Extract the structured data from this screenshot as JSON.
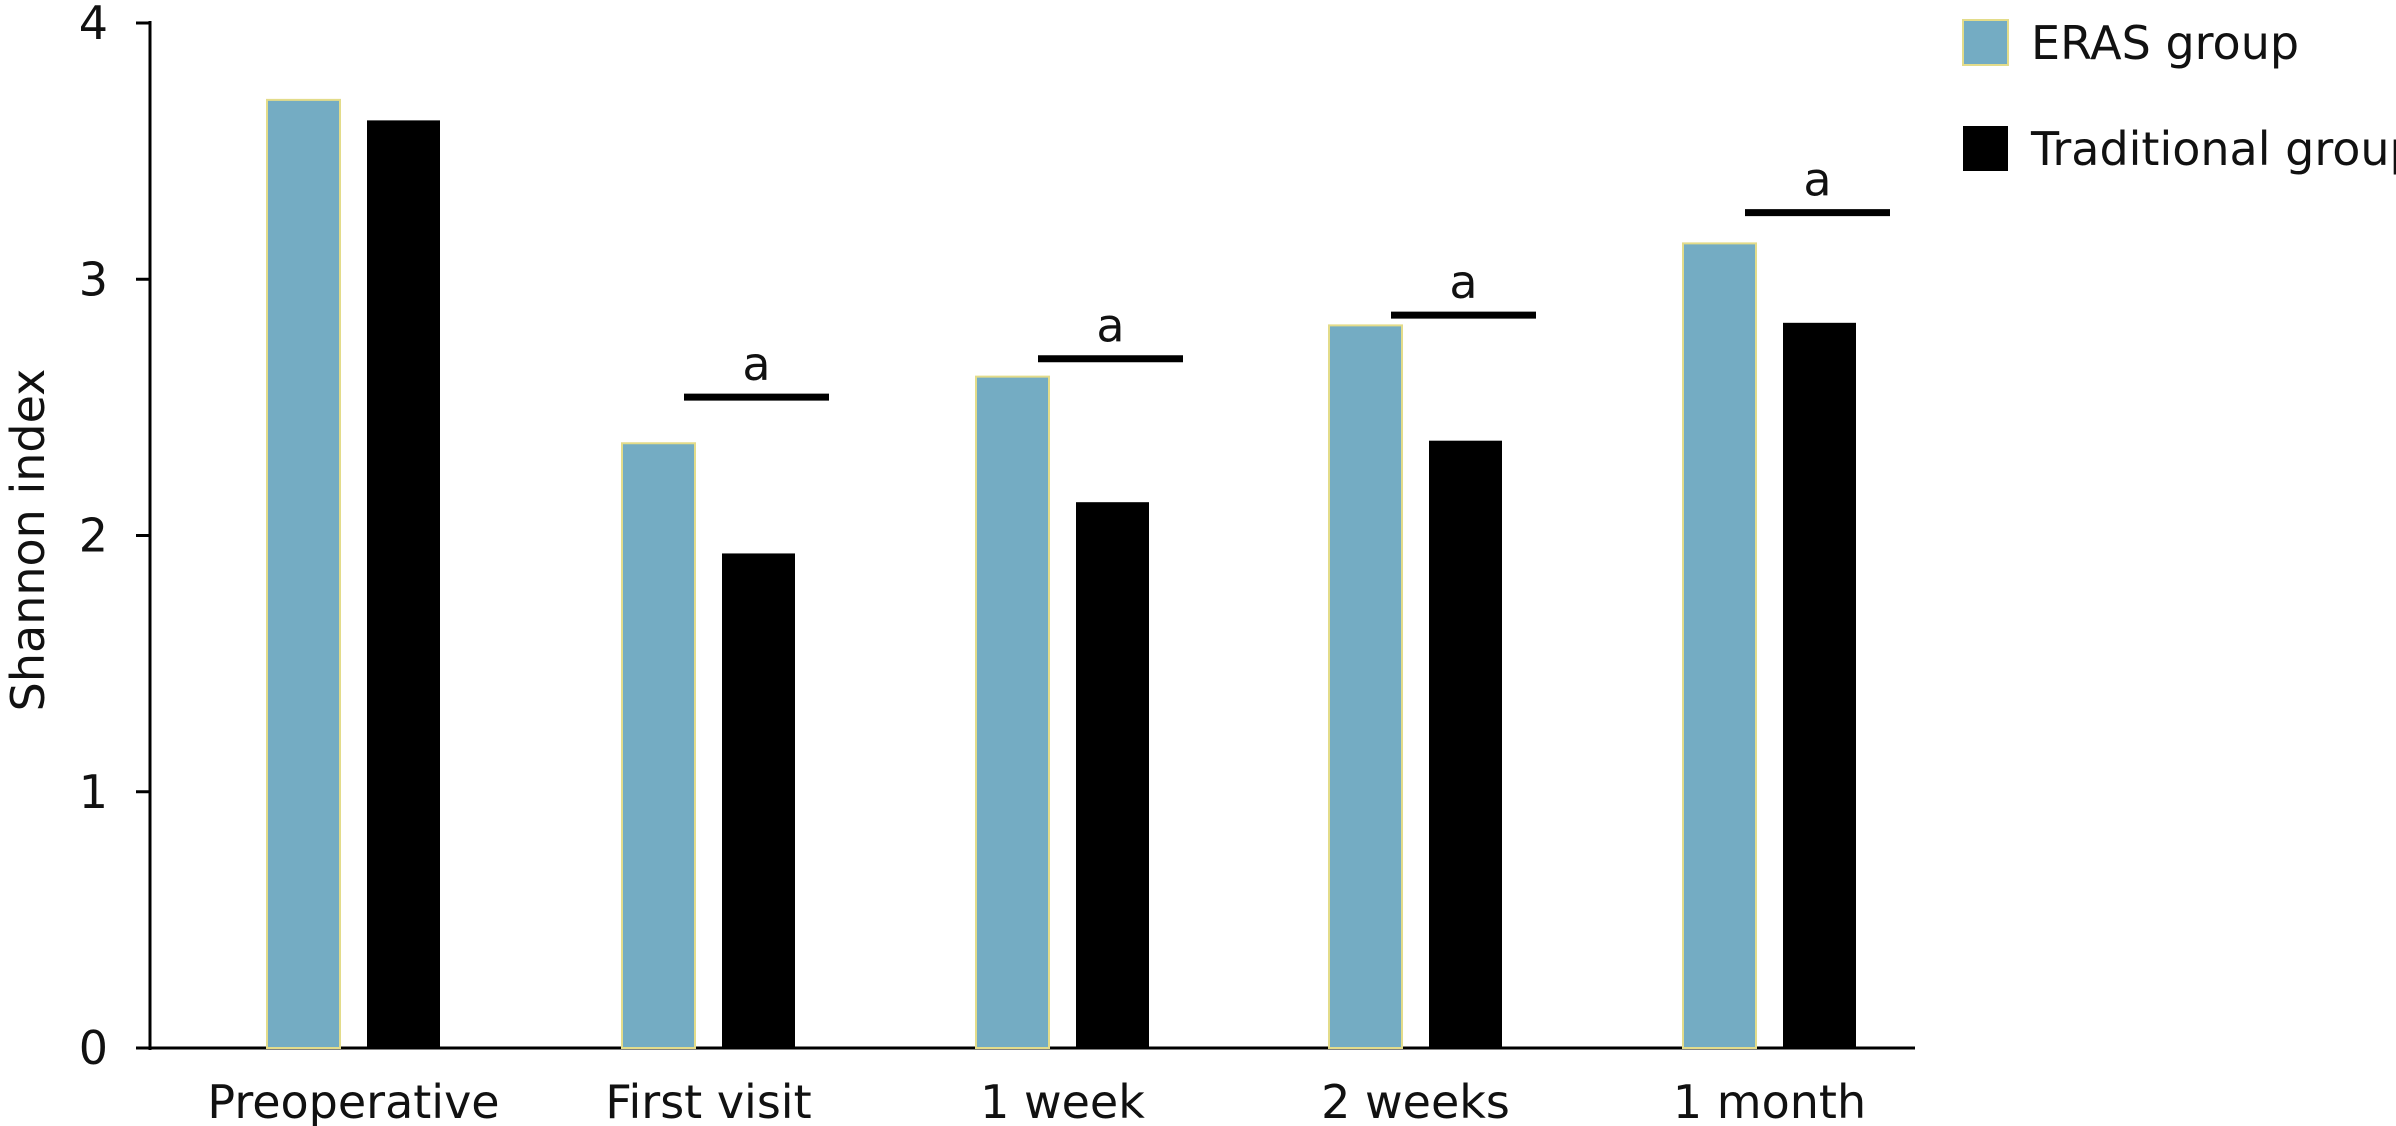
{
  "chart_data": {
    "type": "bar",
    "title": "",
    "xlabel": "",
    "ylabel": "Shannon index",
    "ylim": [
      0,
      4
    ],
    "yticks": [
      0,
      1,
      2,
      3,
      4
    ],
    "categories": [
      "Preoperative",
      "First visit",
      "1 week",
      "2 weeks",
      "1 month"
    ],
    "series": [
      {
        "name": "ERAS group",
        "color": "#74acc3",
        "values": [
          3.7,
          2.36,
          2.62,
          2.82,
          3.14
        ]
      },
      {
        "name": "Traditional group",
        "color": "#000000",
        "values": [
          3.62,
          1.93,
          2.13,
          2.37,
          2.83
        ]
      }
    ],
    "significance": [
      {
        "category": "First visit",
        "label": "a",
        "level": 2.54
      },
      {
        "category": "1 week",
        "label": "a",
        "level": 2.69
      },
      {
        "category": "2 weeks",
        "label": "a",
        "level": 2.86
      },
      {
        "category": "1 month",
        "label": "a",
        "level": 3.26
      }
    ],
    "legend": {
      "placement": "top-right"
    },
    "grid": false
  }
}
